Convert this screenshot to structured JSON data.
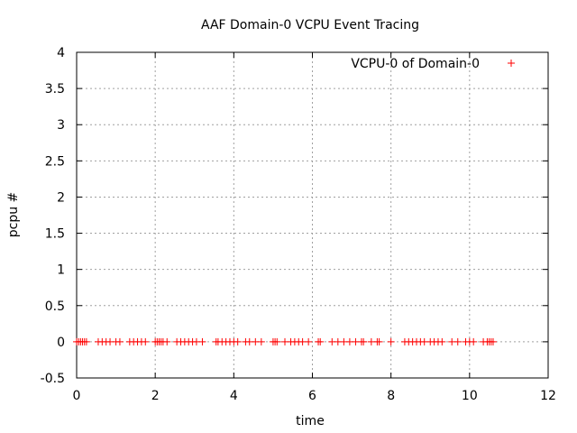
{
  "chart_data": {
    "type": "scatter",
    "title": "AAF Domain-0 VCPU Event Tracing",
    "xlabel": "time",
    "ylabel": "pcpu #",
    "xlim": [
      0,
      12
    ],
    "ylim": [
      -0.5,
      4
    ],
    "xticks": [
      0,
      2,
      4,
      6,
      8,
      10,
      12
    ],
    "xtick_labels": [
      "0",
      "2",
      "4",
      "6",
      "8",
      "10",
      "12"
    ],
    "yticks": [
      -0.5,
      0,
      0.5,
      1,
      1.5,
      2,
      2.5,
      3,
      3.5,
      4
    ],
    "ytick_labels": [
      "-0.5",
      "0",
      "0.5",
      "1",
      "1.5",
      "2",
      "2.5",
      "3",
      "3.5",
      "4"
    ],
    "grid": true,
    "legend_position": "top-right",
    "marker": "plus",
    "color": "#ff0000",
    "series": [
      {
        "name": "VCPU-0 of Domain-0",
        "x": [
          0.0,
          0.05,
          0.1,
          0.15,
          0.2,
          0.25,
          0.55,
          0.65,
          0.75,
          0.85,
          1.0,
          1.1,
          1.35,
          1.45,
          1.55,
          1.65,
          1.75,
          2.0,
          2.05,
          2.1,
          2.15,
          2.2,
          2.3,
          2.55,
          2.65,
          2.75,
          2.85,
          2.95,
          3.05,
          3.2,
          3.55,
          3.6,
          3.7,
          3.8,
          3.9,
          4.0,
          4.1,
          4.3,
          4.4,
          4.55,
          4.7,
          5.0,
          5.05,
          5.1,
          5.3,
          5.45,
          5.55,
          5.65,
          5.75,
          5.9,
          6.15,
          6.2,
          6.5,
          6.65,
          6.8,
          6.95,
          7.1,
          7.25,
          7.3,
          7.5,
          7.65,
          7.7,
          8.0,
          8.35,
          8.45,
          8.55,
          8.65,
          8.75,
          8.85,
          9.0,
          9.1,
          9.2,
          9.3,
          9.55,
          9.7,
          9.9,
          10.0,
          10.1,
          10.35,
          10.45,
          10.5,
          10.55,
          10.6
        ]
      }
    ]
  }
}
